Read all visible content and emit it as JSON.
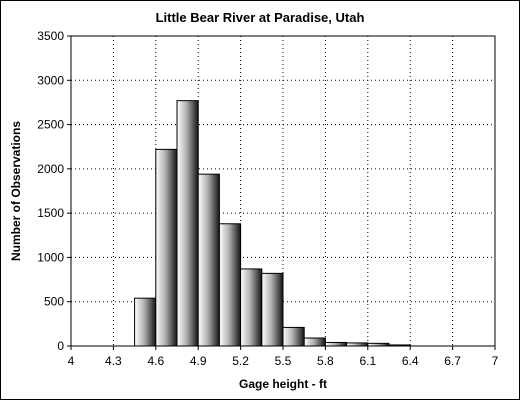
{
  "chart_data": {
    "type": "bar",
    "title": "Little Bear River at Paradise, Utah",
    "xlabel": "Gage height - ft",
    "ylabel": "Number of Observations",
    "xlim": [
      4,
      7
    ],
    "ylim": [
      0,
      3500
    ],
    "xticks": [
      "4",
      "4.3",
      "4.6",
      "4.9",
      "5.2",
      "5.5",
      "5.8",
      "6.1",
      "6.4",
      "6.7",
      "7"
    ],
    "yticks": [
      "0",
      "500",
      "1000",
      "1500",
      "2000",
      "2500",
      "3000",
      "3500"
    ],
    "bin_width": 0.15,
    "bins": [
      {
        "start": 4.45,
        "value": 540
      },
      {
        "start": 4.6,
        "value": 2220
      },
      {
        "start": 4.75,
        "value": 2770
      },
      {
        "start": 4.9,
        "value": 1940
      },
      {
        "start": 5.05,
        "value": 1380
      },
      {
        "start": 5.2,
        "value": 870
      },
      {
        "start": 5.35,
        "value": 820
      },
      {
        "start": 5.5,
        "value": 210
      },
      {
        "start": 5.65,
        "value": 90
      },
      {
        "start": 5.8,
        "value": 40
      },
      {
        "start": 5.95,
        "value": 35
      },
      {
        "start": 6.1,
        "value": 30
      },
      {
        "start": 6.25,
        "value": 12
      }
    ],
    "grid": true,
    "legend": "none"
  }
}
